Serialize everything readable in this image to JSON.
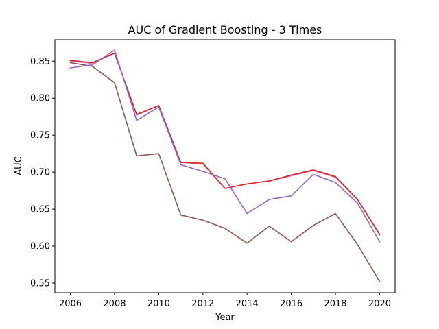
{
  "chart_data": {
    "type": "line",
    "title": "AUC of Gradient Boosting - 3 Times",
    "xlabel": "Year",
    "ylabel": "AUC",
    "xlim": [
      2005.3,
      2020.7
    ],
    "ylim": [
      0.537,
      0.879
    ],
    "x": [
      2006,
      2007,
      2008,
      2009,
      2010,
      2011,
      2012,
      2013,
      2014,
      2015,
      2016,
      2017,
      2018,
      2019,
      2020
    ],
    "xticks": [
      2006,
      2008,
      2010,
      2012,
      2014,
      2016,
      2018,
      2020
    ],
    "yticks": [
      0.55,
      0.6,
      0.65,
      0.7,
      0.75,
      0.8,
      0.85
    ],
    "grid": false,
    "legend": "none",
    "series": [
      {
        "color": "#8c564b",
        "values": [
          0.848,
          0.843,
          0.821,
          0.722,
          0.725,
          0.642,
          0.635,
          0.624,
          0.604,
          0.627,
          0.606,
          0.628,
          0.644,
          0.602,
          0.552
        ]
      },
      {
        "color": "#e377c2",
        "values": [
          0.85,
          0.847,
          0.861,
          0.777,
          0.79,
          0.713,
          0.711,
          0.678,
          0.684,
          0.688,
          0.695,
          0.702,
          0.693,
          0.663,
          0.615
        ]
      },
      {
        "color": "#d62728",
        "values": [
          0.851,
          0.848,
          0.861,
          0.778,
          0.79,
          0.713,
          0.712,
          0.678,
          0.684,
          0.688,
          0.696,
          0.703,
          0.694,
          0.663,
          0.616
        ]
      },
      {
        "color": "#9467bd",
        "values": [
          0.841,
          0.845,
          0.865,
          0.77,
          0.788,
          0.71,
          0.701,
          0.691,
          0.644,
          0.663,
          0.668,
          0.697,
          0.686,
          0.658,
          0.606
        ]
      }
    ]
  }
}
